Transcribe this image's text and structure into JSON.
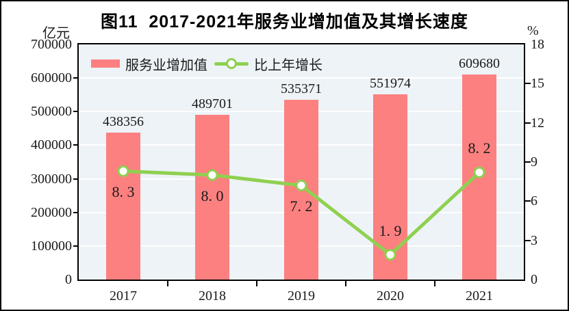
{
  "figure": {
    "title": "图11  2017-2021年服务业增加值及其增长速度"
  },
  "axes": {
    "left_unit": "亿元",
    "right_unit": "%"
  },
  "legend": {
    "items": [
      {
        "label": "服务业增加值",
        "type": "bar",
        "color": "#FC8080"
      },
      {
        "label": "比上年增长",
        "type": "line",
        "color": "#8FD050"
      }
    ]
  },
  "chart_data": {
    "type": "combo",
    "title": "图11  2017-2021年服务业增加值及其增长速度",
    "categories": [
      "2017",
      "2018",
      "2019",
      "2020",
      "2021"
    ],
    "series": [
      {
        "name": "服务业增加值",
        "type": "bar",
        "axis": "left",
        "color": "#FC8080",
        "values": [
          438356,
          489701,
          535371,
          551974,
          609680
        ],
        "labels": [
          "438356",
          "489701",
          "535371",
          "551974",
          "609680"
        ]
      },
      {
        "name": "比上年增长",
        "type": "line",
        "axis": "right",
        "color": "#8FD050",
        "marker": "circle",
        "marker_fill": "#FFFFFF",
        "values": [
          8.3,
          8.0,
          7.2,
          1.9,
          8.2
        ],
        "labels": [
          "8. 3",
          "8. 0",
          "7. 2",
          "1. 9",
          "8. 2"
        ],
        "label_side": [
          "below",
          "below",
          "below",
          "above",
          "above"
        ]
      }
    ],
    "left_axis": {
      "unit": "亿元",
      "min": 0,
      "max": 700000,
      "tick_step": 100000,
      "ticks": [
        "0",
        "100000",
        "200000",
        "300000",
        "400000",
        "500000",
        "600000",
        "700000"
      ]
    },
    "right_axis": {
      "unit": "%",
      "min": 0,
      "max": 18,
      "tick_step": 3,
      "ticks": [
        "0",
        "3",
        "6",
        "9",
        "12",
        "15",
        "18"
      ]
    },
    "grid": "horizontal white lines",
    "plot_background": "#EDF3F7",
    "legend_position": "top-left inside plot"
  }
}
